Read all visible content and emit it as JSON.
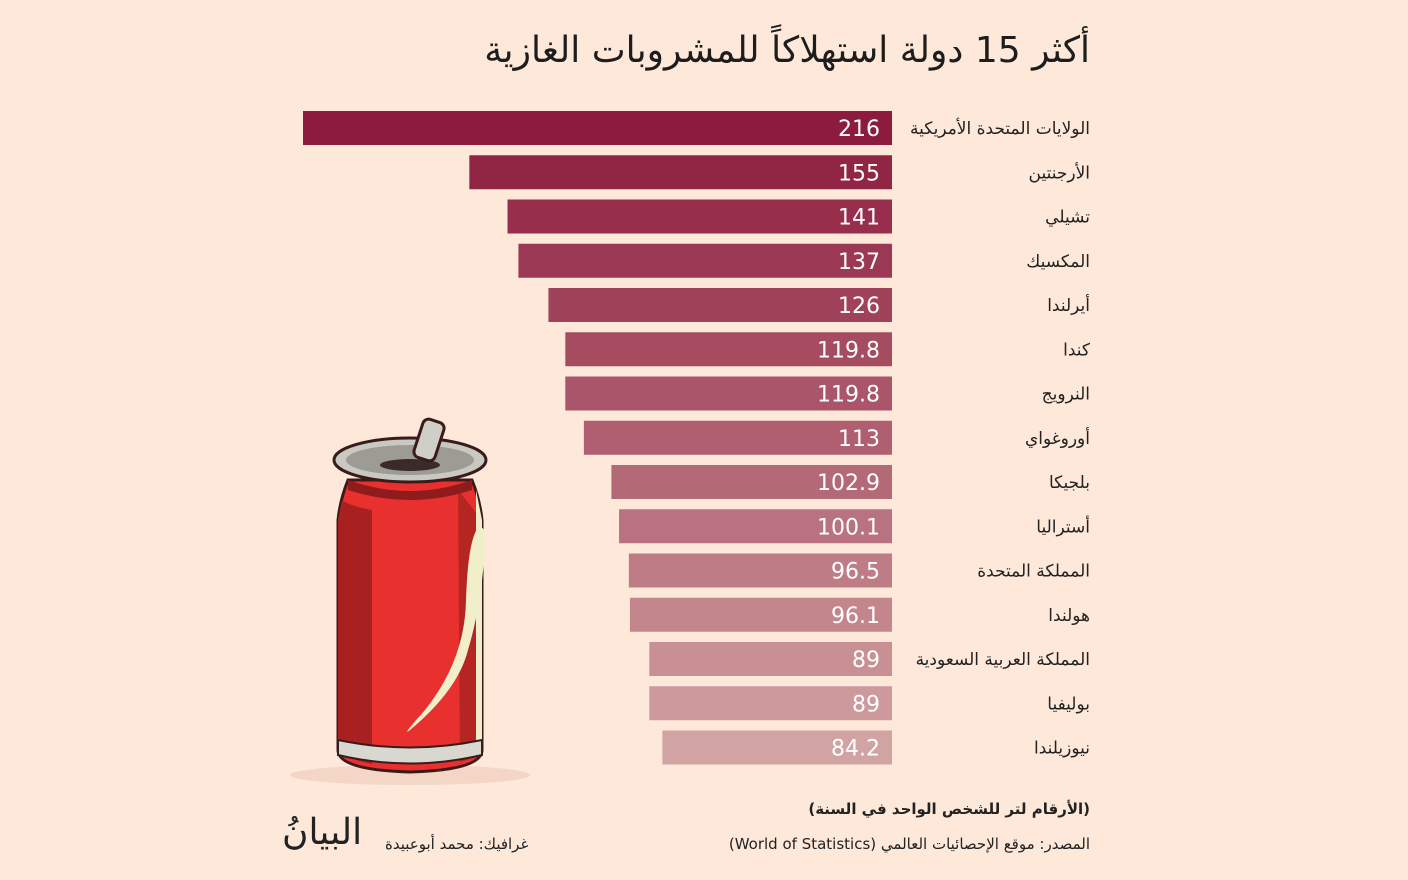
{
  "chart_data": {
    "type": "bar",
    "orientation": "horizontal",
    "title": "أكثر 15 دولة استهلاكاً للمشروبات الغازية",
    "categories": [
      "الولايات المتحدة الأمريكية",
      "الأرجنتين",
      "تشيلي",
      "المكسيك",
      "أيرلندا",
      "كندا",
      "النرويج",
      "أوروغواي",
      "بلجيكا",
      "أستراليا",
      "المملكة المتحدة",
      "هولندا",
      "المملكة العربية السعودية",
      "بوليفيا",
      "نيوزيلندا"
    ],
    "values": [
      216,
      155,
      141,
      137,
      126,
      119.8,
      119.8,
      113,
      102.9,
      100.1,
      96.5,
      96.1,
      89,
      89,
      84.2
    ],
    "value_labels": [
      "216",
      "155",
      "141",
      "137",
      "126",
      "119.8",
      "119.8",
      "113",
      "102.9",
      "100.1",
      "96.5",
      "96.1",
      "89",
      "89",
      "84.2"
    ],
    "xlim": [
      0,
      216
    ],
    "grid": false,
    "colors": {
      "first_bar": "#8c1b3d",
      "last_bar": "#d2a3a3",
      "background": "#fde8da",
      "value_text": "#ffffff"
    }
  },
  "note": "(الأرقام لتر للشخص الواحد في السنة)",
  "source": "المصدر: موقع الإحصائيات العالمي (World of Statistics)",
  "credit": "غرافيك: محمد أبوعبيدة",
  "logo": "البيانُ"
}
